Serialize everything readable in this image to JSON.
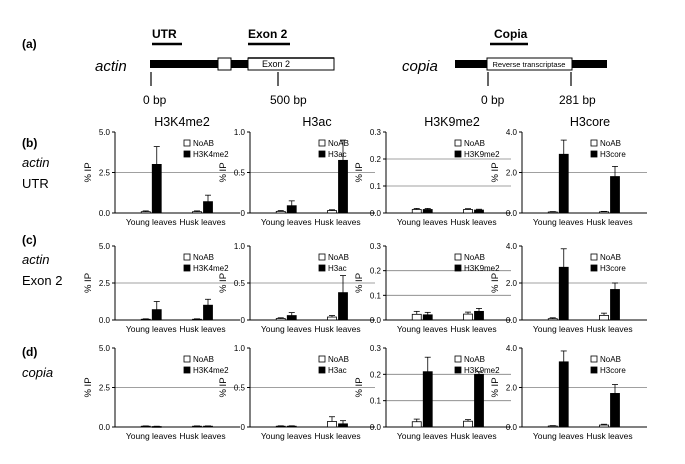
{
  "schematic": {
    "panel_label": "(a)",
    "actin": {
      "gene_label": "actin",
      "region_utr": "UTR",
      "region_exon": "Exon 2",
      "box_label": "Exon 2",
      "ticks": [
        "0 bp",
        "500 bp"
      ]
    },
    "copia": {
      "gene_label": "copia",
      "region_label": "Copia",
      "box_label": "Reverse transcriptase",
      "ticks": [
        "0 bp",
        "281 bp"
      ]
    }
  },
  "column_titles": [
    "H3K4me2",
    "H3ac",
    "H3K9me2",
    "H3core"
  ],
  "row_labels": [
    {
      "panel": "(b)",
      "gene": "actin",
      "region": "UTR"
    },
    {
      "panel": "(c)",
      "gene": "actin",
      "region": "Exon 2"
    },
    {
      "panel": "(d)",
      "gene": "copia",
      "region": ""
    }
  ],
  "colors": {
    "noab": "#ffffff",
    "antibody": "#000000",
    "axis": "#000000",
    "grid": "#808080"
  },
  "chart_data": [
    {
      "type": "bar",
      "ylabel": "% IP",
      "categories": [
        "Young leaves",
        "Husk leaves"
      ],
      "ylim": [
        0,
        5
      ],
      "yticks": [
        "0.0",
        "2.5",
        "5.0"
      ],
      "gridlines": [
        2.5
      ],
      "series": [
        {
          "name": "NoAB",
          "values": [
            0.08,
            0.08
          ],
          "errors": [
            0.05,
            0.05
          ]
        },
        {
          "name": "H3K4me2",
          "values": [
            3.0,
            0.7
          ],
          "errors": [
            1.1,
            0.4
          ]
        }
      ]
    },
    {
      "type": "bar",
      "ylabel": "% IP",
      "categories": [
        "Young leaves",
        "Husk leaves"
      ],
      "ylim": [
        0,
        1
      ],
      "yticks": [
        "0",
        "0.5",
        "1.0"
      ],
      "gridlines": [
        0.5
      ],
      "series": [
        {
          "name": "NoAB",
          "values": [
            0.02,
            0.03
          ],
          "errors": [
            0.01,
            0.01
          ]
        },
        {
          "name": "H3ac",
          "values": [
            0.09,
            0.65
          ],
          "errors": [
            0.06,
            0.25
          ]
        }
      ]
    },
    {
      "type": "bar",
      "ylabel": "% IP",
      "categories": [
        "Young leaves",
        "Husk leaves"
      ],
      "ylim": [
        0,
        0.3
      ],
      "yticks": [
        "0.0",
        "0.1",
        "0.2",
        "0.3"
      ],
      "gridlines": [
        0.1,
        0.2
      ],
      "series": [
        {
          "name": "NoAB",
          "values": [
            0.013,
            0.013
          ],
          "errors": [
            0.004,
            0.003
          ]
        },
        {
          "name": "H3K9me2",
          "values": [
            0.013,
            0.011
          ],
          "errors": [
            0.004,
            0.003
          ]
        }
      ]
    },
    {
      "type": "bar",
      "ylabel": "% IP",
      "categories": [
        "Young leaves",
        "Husk leaves"
      ],
      "ylim": [
        0,
        4
      ],
      "yticks": [
        "0.0",
        "2.0",
        "4.0"
      ],
      "gridlines": [
        2.0
      ],
      "series": [
        {
          "name": "NoAB",
          "values": [
            0.05,
            0.06
          ],
          "errors": [
            0.02,
            0.02
          ]
        },
        {
          "name": "H3core",
          "values": [
            2.9,
            1.8
          ],
          "errors": [
            0.7,
            0.5
          ]
        }
      ]
    },
    {
      "type": "bar",
      "ylabel": "% IP",
      "categories": [
        "Young leaves",
        "Husk leaves"
      ],
      "ylim": [
        0,
        5
      ],
      "yticks": [
        "0.0",
        "2.5",
        "5.0"
      ],
      "gridlines": [
        2.5
      ],
      "series": [
        {
          "name": "NoAB",
          "values": [
            0.05,
            0.05
          ],
          "errors": [
            0.03,
            0.03
          ]
        },
        {
          "name": "H3K4me2",
          "values": [
            0.7,
            1.0
          ],
          "errors": [
            0.55,
            0.4
          ]
        }
      ]
    },
    {
      "type": "bar",
      "ylabel": "% IP",
      "categories": [
        "Young leaves",
        "Husk leaves"
      ],
      "ylim": [
        0,
        1
      ],
      "yticks": [
        "0",
        "0.5",
        "1.0"
      ],
      "gridlines": [
        0.5
      ],
      "series": [
        {
          "name": "NoAB",
          "values": [
            0.02,
            0.04
          ],
          "errors": [
            0.01,
            0.02
          ]
        },
        {
          "name": "H3ac",
          "values": [
            0.06,
            0.37
          ],
          "errors": [
            0.04,
            0.23
          ]
        }
      ]
    },
    {
      "type": "bar",
      "ylabel": "% IP",
      "categories": [
        "Young leaves",
        "Husk leaves"
      ],
      "ylim": [
        0,
        0.3
      ],
      "yticks": [
        "0.0",
        "0.1",
        "0.2",
        "0.3"
      ],
      "gridlines": [
        0.1,
        0.2
      ],
      "series": [
        {
          "name": "NoAB",
          "values": [
            0.023,
            0.024
          ],
          "errors": [
            0.012,
            0.008
          ]
        },
        {
          "name": "H3K9me2",
          "values": [
            0.021,
            0.035
          ],
          "errors": [
            0.01,
            0.012
          ]
        }
      ]
    },
    {
      "type": "bar",
      "ylabel": "% IP",
      "categories": [
        "Young leaves",
        "Husk leaves"
      ],
      "ylim": [
        0,
        4
      ],
      "yticks": [
        "0.0",
        "2.0",
        "4.0"
      ],
      "gridlines": [
        2.0
      ],
      "series": [
        {
          "name": "NoAB",
          "values": [
            0.07,
            0.25
          ],
          "errors": [
            0.05,
            0.12
          ]
        },
        {
          "name": "H3core",
          "values": [
            2.85,
            1.65
          ],
          "errors": [
            1.0,
            0.35
          ]
        }
      ]
    },
    {
      "type": "bar",
      "ylabel": "% IP",
      "categories": [
        "Young leaves",
        "Husk leaves"
      ],
      "ylim": [
        0,
        5
      ],
      "yticks": [
        "0.0",
        "2.5",
        "5.0"
      ],
      "gridlines": [
        2.5
      ],
      "series": [
        {
          "name": "NoAB",
          "values": [
            0.05,
            0.05
          ],
          "errors": [
            0.02,
            0.02
          ]
        },
        {
          "name": "H3K4me2",
          "values": [
            0.03,
            0.05
          ],
          "errors": [
            0.02,
            0.02
          ]
        }
      ]
    },
    {
      "type": "bar",
      "ylabel": "% IP",
      "categories": [
        "Young leaves",
        "Husk leaves"
      ],
      "ylim": [
        0,
        1
      ],
      "yticks": [
        "0",
        "0.5",
        "1.0"
      ],
      "gridlines": [
        0.5
      ],
      "series": [
        {
          "name": "NoAB",
          "values": [
            0.01,
            0.07
          ],
          "errors": [
            0.005,
            0.06
          ]
        },
        {
          "name": "H3ac",
          "values": [
            0.01,
            0.04
          ],
          "errors": [
            0.005,
            0.04
          ]
        }
      ]
    },
    {
      "type": "bar",
      "ylabel": "% IP",
      "categories": [
        "Young leaves",
        "Husk leaves"
      ],
      "ylim": [
        0,
        0.3
      ],
      "yticks": [
        "0.0",
        "0.1",
        "0.2",
        "0.3"
      ],
      "gridlines": [
        0.1,
        0.2
      ],
      "series": [
        {
          "name": "NoAB",
          "values": [
            0.02,
            0.022
          ],
          "errors": [
            0.01,
            0.006
          ]
        },
        {
          "name": "H3K9me2",
          "values": [
            0.21,
            0.2
          ],
          "errors": [
            0.055,
            0.01
          ]
        }
      ]
    },
    {
      "type": "bar",
      "ylabel": "% IP",
      "categories": [
        "Young leaves",
        "Husk leaves"
      ],
      "ylim": [
        0,
        4
      ],
      "yticks": [
        "0.0",
        "2.0",
        "4.0"
      ],
      "gridlines": [
        2.0
      ],
      "series": [
        {
          "name": "NoAB",
          "values": [
            0.05,
            0.1
          ],
          "errors": [
            0.02,
            0.04
          ]
        },
        {
          "name": "H3core",
          "values": [
            3.3,
            1.7
          ],
          "errors": [
            0.55,
            0.45
          ]
        }
      ]
    }
  ]
}
